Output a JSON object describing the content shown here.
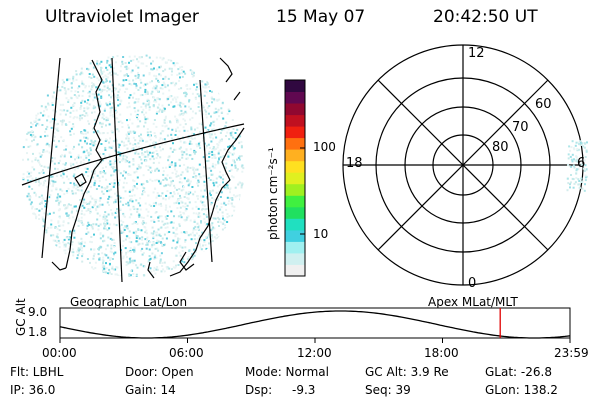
{
  "header": {
    "title": "Ultraviolet Imager",
    "date": "15 May 07",
    "time": "20:42:50 UT"
  },
  "colorbar": {
    "unit_label": "photon cm⁻²s⁻¹",
    "tick_100": "100",
    "tick_10": "10",
    "colors": [
      "#f0f0f0",
      "#d0f0f0",
      "#a0f0f0",
      "#40d0e0",
      "#20e0c0",
      "#20e060",
      "#40f040",
      "#a0f020",
      "#e0f020",
      "#ffe020",
      "#ffb020",
      "#ff7010",
      "#f02010",
      "#c01020",
      "#900830",
      "#600850",
      "#300840"
    ]
  },
  "left_panel": {
    "label": "Geographic Lat/Lon"
  },
  "right_panel": {
    "label": "Apex MLat/MLT",
    "mlt_12": "12",
    "mlt_18": "18",
    "mlt_6": "6",
    "mlt_0": "0",
    "lat_60": "60",
    "lat_70": "70",
    "lat_80": "80"
  },
  "timeline": {
    "ylabel": "GC Alt",
    "ymax": "9.0",
    "ymin": "1.8",
    "ticks": [
      "00:00",
      "06:00",
      "12:00",
      "18:00",
      "23:59"
    ],
    "marker_fraction": 0.8631
  },
  "info": {
    "filter": "Flt: LBHL",
    "ip": "IP: 36.0",
    "door": "Door: Open",
    "gain": "Gain: 14",
    "mode": "Mode: Normal",
    "dsp_label": "Dsp:",
    "dsp_value": "-9.3",
    "gc_alt": "GC Alt: 3.9 Re",
    "seq": "Seq: 39",
    "glat": "GLat: -26.8",
    "glon": "GLon: 138.2"
  }
}
